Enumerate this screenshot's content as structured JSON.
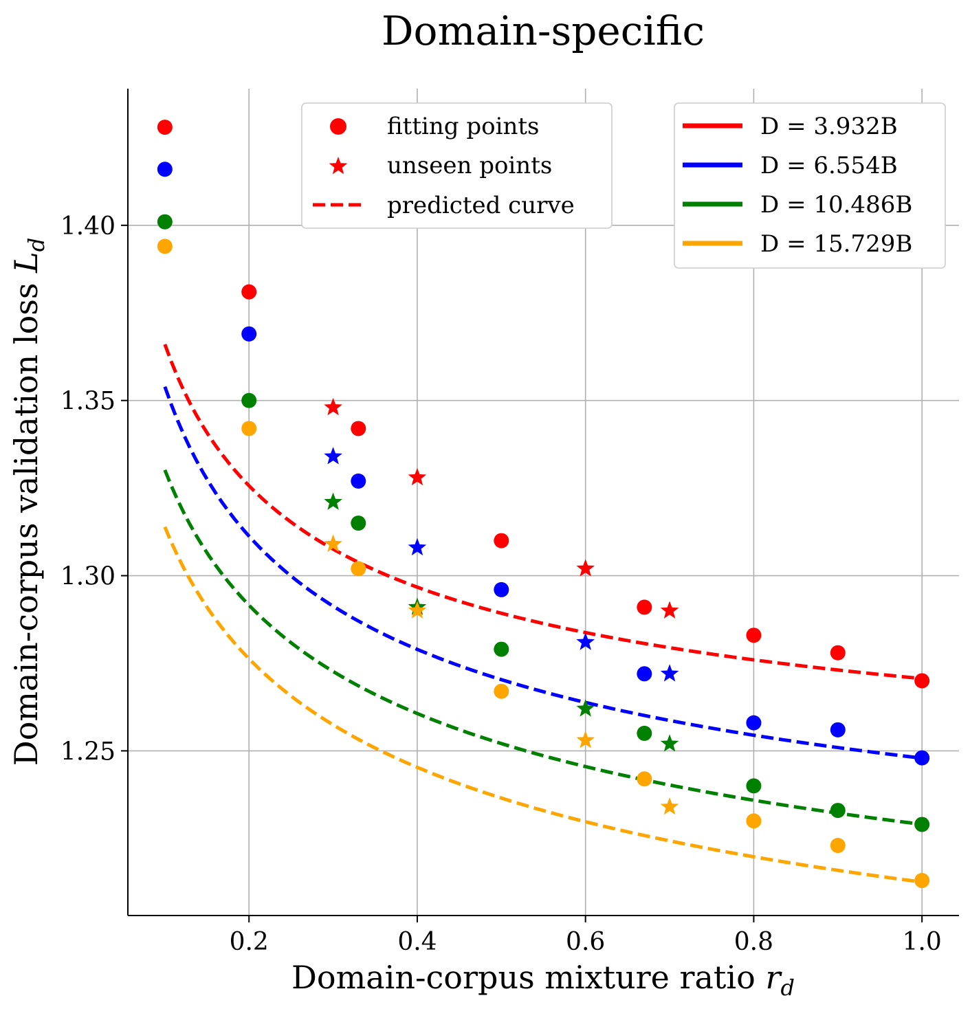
{
  "chart_data": {
    "type": "line",
    "title": "Domain-specific",
    "xlabel": "Domain-corpus mixture ratio",
    "xlabel_var": "r",
    "xlabel_sub": "d",
    "ylabel": "Domain-corpus validation loss",
    "ylabel_var": "L",
    "ylabel_sub": "d",
    "xlim": [
      0.056,
      1.044
    ],
    "ylim": [
      1.203,
      1.439
    ],
    "xticks": [
      0.2,
      0.4,
      0.6,
      0.8,
      1.0
    ],
    "xtick_labels": [
      "0.2",
      "0.4",
      "0.6",
      "0.8",
      "1.0"
    ],
    "yticks": [
      1.25,
      1.3,
      1.35,
      1.4
    ],
    "ytick_labels": [
      "1.25",
      "1.30",
      "1.35",
      "1.40"
    ],
    "grid": true,
    "legend_markers": {
      "placement": "top-center",
      "entries": [
        "fitting points",
        "unseen points",
        "predicted curve"
      ],
      "color": "#ff0000"
    },
    "legend_series": {
      "placement": "top-right"
    },
    "series": [
      {
        "name": "D = 3.932B",
        "color": "#ff0000",
        "fitting_points": [
          [
            0.1,
            1.428
          ],
          [
            0.2,
            1.381
          ],
          [
            0.33,
            1.342
          ],
          [
            0.5,
            1.31
          ],
          [
            0.67,
            1.291
          ],
          [
            0.8,
            1.283
          ],
          [
            0.9,
            1.278
          ],
          [
            1.0,
            1.27
          ]
        ],
        "unseen_points": [
          [
            0.3,
            1.348
          ],
          [
            0.4,
            1.328
          ],
          [
            0.6,
            1.302
          ],
          [
            0.7,
            1.29
          ]
        ],
        "curve": {
          "a": 1.2234,
          "b": 0.04723,
          "alpha": 0.48
        }
      },
      {
        "name": "D = 6.554B",
        "color": "#0000ff",
        "fitting_points": [
          [
            0.1,
            1.416
          ],
          [
            0.2,
            1.369
          ],
          [
            0.33,
            1.327
          ],
          [
            0.5,
            1.296
          ],
          [
            0.67,
            1.272
          ],
          [
            0.8,
            1.258
          ],
          [
            0.9,
            1.256
          ],
          [
            1.0,
            1.248
          ]
        ],
        "unseen_points": [
          [
            0.3,
            1.334
          ],
          [
            0.4,
            1.308
          ],
          [
            0.6,
            1.281
          ],
          [
            0.7,
            1.272
          ]
        ],
        "curve": {
          "a": 1.1778,
          "b": 0.07012,
          "alpha": 0.4
        }
      },
      {
        "name": "D = 10.486B",
        "color": "#008000",
        "fitting_points": [
          [
            0.1,
            1.401
          ],
          [
            0.2,
            1.35
          ],
          [
            0.33,
            1.315
          ],
          [
            0.5,
            1.279
          ],
          [
            0.67,
            1.255
          ],
          [
            0.8,
            1.24
          ],
          [
            0.9,
            1.233
          ],
          [
            1.0,
            1.229
          ]
        ],
        "unseen_points": [
          [
            0.3,
            1.321
          ],
          [
            0.4,
            1.291
          ],
          [
            0.6,
            1.262
          ],
          [
            0.7,
            1.252
          ]
        ],
        "curve": {
          "a": 1.1362,
          "b": 0.09283,
          "alpha": 0.32
        }
      },
      {
        "name": "D = 15.729B",
        "color": "#ffa500",
        "fitting_points": [
          [
            0.1,
            1.394
          ],
          [
            0.2,
            1.342
          ],
          [
            0.33,
            1.302
          ],
          [
            0.5,
            1.267
          ],
          [
            0.67,
            1.242
          ],
          [
            0.8,
            1.23
          ],
          [
            0.9,
            1.223
          ],
          [
            1.0,
            1.213
          ]
        ],
        "unseen_points": [
          [
            0.3,
            1.309
          ],
          [
            0.4,
            1.29
          ],
          [
            0.6,
            1.253
          ],
          [
            0.7,
            1.234
          ]
        ],
        "curve": {
          "a": 1.1006,
          "b": 0.11195,
          "alpha": 0.28
        }
      }
    ]
  }
}
